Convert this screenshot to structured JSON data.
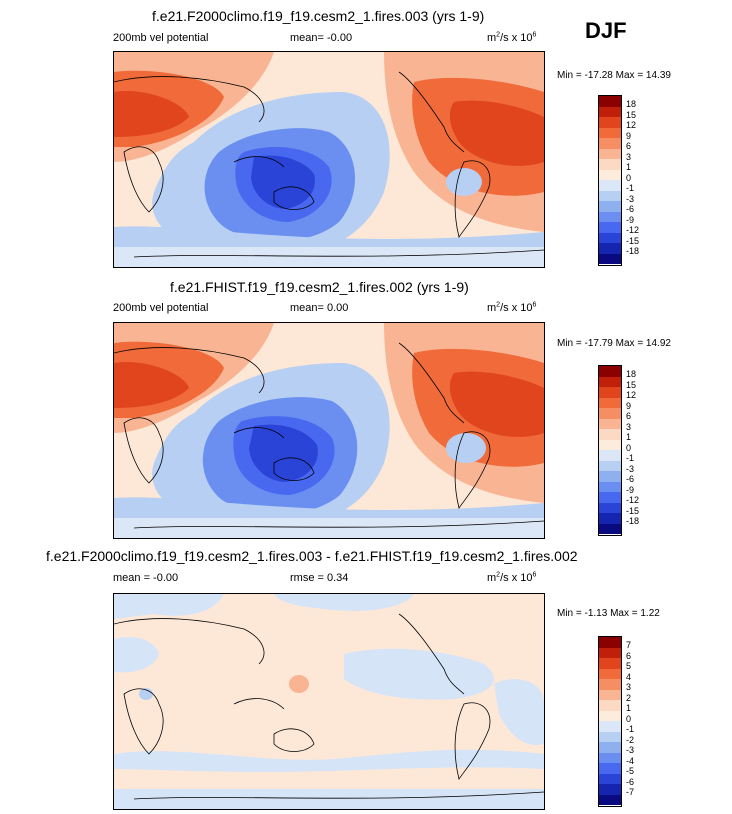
{
  "season": "DJF",
  "panels": [
    {
      "title": "f.e21.F2000climo.f19_f19.cesm2_1.fires.003 (yrs 1-9)",
      "left": "200mb vel potential",
      "center": "mean=  -0.00",
      "units_base": "m",
      "units_exp1": "2",
      "units_mid": "/s x 10",
      "units_exp2": "6",
      "minmax": "Min = -17.28 Max =  14.39",
      "colorbar_labels": [
        "18",
        "15",
        "12",
        "9",
        "6",
        "3",
        "1",
        "0",
        "-1",
        "-3",
        "-6",
        "-9",
        "-12",
        "-15",
        "-18"
      ]
    },
    {
      "title": "f.e21.FHIST.f19_f19.cesm2_1.fires.002 (yrs 1-9)",
      "left": "200mb vel potential",
      "center": "mean=   0.00",
      "units_base": "m",
      "units_exp1": "2",
      "units_mid": "/s x 10",
      "units_exp2": "6",
      "minmax": "Min = -17.79 Max =  14.92",
      "colorbar_labels": [
        "18",
        "15",
        "12",
        "9",
        "6",
        "3",
        "1",
        "0",
        "-1",
        "-3",
        "-6",
        "-9",
        "-12",
        "-15",
        "-18"
      ]
    },
    {
      "title": "f.e21.F2000climo.f19_f19.cesm2_1.fires.003 - f.e21.FHIST.f19_f19.cesm2_1.fires.002",
      "left": "mean =  -0.00",
      "center": "rmse =   0.34",
      "units_base": "m",
      "units_exp1": "2",
      "units_mid": "/s x 10",
      "units_exp2": "6",
      "minmax": "Min =  -1.13 Max =   1.22",
      "colorbar_labels": [
        "7",
        "6",
        "5",
        "4",
        "3",
        "2",
        "1",
        "0",
        "-1",
        "-2",
        "-3",
        "-4",
        "-5",
        "-6",
        "-7"
      ]
    }
  ],
  "colors": {
    "colorbar": [
      "#8b0000",
      "#c0200a",
      "#e0451e",
      "#f06a3a",
      "#f58e62",
      "#f9b593",
      "#fcd9c2",
      "#fdebdc",
      "#dbe7f7",
      "#b7cff2",
      "#8fb0ee",
      "#6a8ff0",
      "#4868ef",
      "#2a44d8",
      "#1525b0",
      "#0a0a80"
    ],
    "ocean_neutral": "#fde8d8",
    "light_blue": "#d6e4f7"
  }
}
